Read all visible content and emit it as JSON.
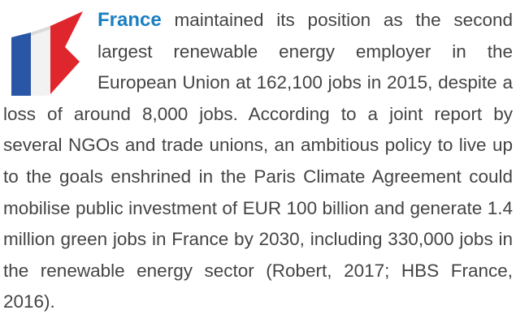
{
  "paragraph": {
    "lead": "France",
    "text": "maintained its position as the second largest renewable energy employer in the European Union at 162,100 jobs in 2015, despite a loss of around 8,000 jobs. According to a joint report by several NGOs and trade unions, an ambitious policy to live up to the goals enshrined in the Paris Climate Agreement could mobilise public investment  of EUR 100 billion and generate 1.4 million green jobs in France by 2030, including 330,000 jobs in the renewable energy sector (Robert, 2017; HBS France, 2016)."
  }
}
